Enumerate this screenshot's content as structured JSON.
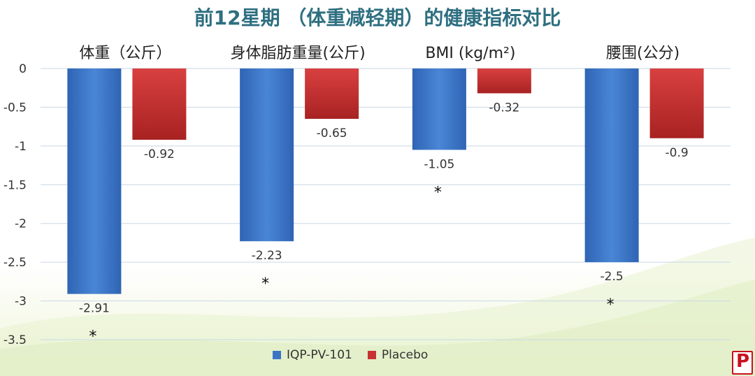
{
  "title": "前12星期 （体重减轻期）的健康指标对比",
  "chart_data": {
    "type": "bar",
    "categories": [
      "体重（公斤）",
      "身体脂肪重量(公斤)",
      "BMI (kg/m²)",
      "腰围(公分)"
    ],
    "series": [
      {
        "name": "IQP-PV-101",
        "values": [
          -2.91,
          -2.23,
          -1.05,
          -2.5
        ],
        "color": "#3b74c4",
        "significance": [
          "*",
          "*",
          "*",
          "*"
        ]
      },
      {
        "name": "Placebo",
        "values": [
          -0.92,
          -0.65,
          -0.32,
          -0.9
        ],
        "color": "#c83232"
      }
    ],
    "ylim": [
      -3.5,
      0
    ],
    "yticks": [
      "0",
      "-0.5",
      "-1",
      "-1.5",
      "-2",
      "-2.5",
      "-3",
      "-3.5"
    ],
    "ytick_values": [
      0,
      -0.5,
      -1,
      -1.5,
      -2,
      -2.5,
      -3,
      -3.5
    ],
    "grid": true,
    "legend": "bottom"
  },
  "logo_letter": "P"
}
